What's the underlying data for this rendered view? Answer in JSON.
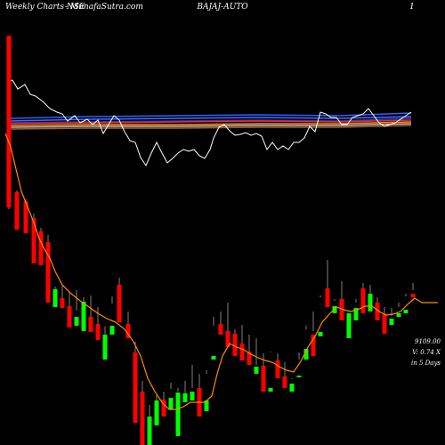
{
  "header": {
    "left": "Weekly Charts NSE",
    "middle": "-  MunafaSutra.com",
    "symbol": "BAJAJ-AUTO",
    "right": "1"
  },
  "side_labels": {
    "price": "9109.00",
    "change": "V: 0.74  X",
    "period": "in 5 Days"
  },
  "colors": {
    "background": "#000000",
    "up": "#00ff00",
    "down": "#ff0000",
    "wick": "#808080",
    "ma": "#ff8c00",
    "indicator": "#ffffff",
    "band_blue": "#3060ff",
    "band_red": "#ff2020",
    "band_orange": "#ff8c00"
  },
  "chart_data": {
    "type": "candlestick",
    "ylim": [
      90,
      500
    ],
    "candles": [
      [
        10,
        40,
        44,
        233,
        235,
        "down"
      ],
      [
        19,
        216,
        214,
        258,
        236,
        "down"
      ],
      [
        29,
        226,
        224,
        262,
        236,
        "down"
      ],
      [
        38,
        245,
        240,
        296,
        292,
        "down"
      ],
      [
        46,
        260,
        256,
        298,
        286,
        "down"
      ],
      [
        54,
        272,
        264,
        340,
        335,
        "down"
      ],
      [
        62,
        325,
        322,
        345,
        330,
        "up"
      ],
      [
        70,
        335,
        320,
        346,
        343,
        "down"
      ],
      [
        78,
        344,
        327,
        368,
        360,
        "down"
      ],
      [
        86,
        356,
        326,
        366,
        349,
        "up"
      ],
      [
        94,
        339,
        334,
        372,
        342,
        "up"
      ],
      [
        102,
        356,
        332,
        373,
        363,
        "down"
      ],
      [
        110,
        364,
        345,
        382,
        380,
        "down"
      ],
      [
        118,
        376,
        367,
        404,
        393,
        "up"
      ],
      [
        126,
        366,
        333,
        376,
        341,
        "up"
      ],
      [
        134,
        320,
        312,
        362,
        356,
        "down"
      ],
      [
        144,
        364,
        350,
        380,
        370,
        "down"
      ],
      [
        152,
        396,
        384,
        475,
        456,
        "down"
      ],
      [
        160,
        440,
        428,
        500,
        487,
        "down"
      ],
      [
        168,
        468,
        455,
        500,
        475,
        "up"
      ],
      [
        176,
        450,
        444,
        478,
        453,
        "up"
      ],
      [
        184,
        449,
        440,
        468,
        458,
        "down"
      ],
      [
        192,
        447,
        430,
        460,
        437,
        "up"
      ],
      [
        200,
        441,
        436,
        490,
        440,
        "up"
      ],
      [
        208,
        442,
        428,
        452,
        445,
        "up"
      ],
      [
        216,
        440,
        410,
        450,
        436,
        "up"
      ],
      [
        224,
        436,
        420,
        468,
        458,
        "down"
      ],
      [
        232,
        450,
        416,
        462,
        420,
        "up"
      ],
      [
        240,
        400,
        356,
        404,
        366,
        "up"
      ],
      [
        248,
        364,
        350,
        376,
        374,
        "down"
      ],
      [
        256,
        372,
        340,
        390,
        380,
        "down"
      ],
      [
        264,
        375,
        370,
        400,
        396,
        "down"
      ],
      [
        272,
        386,
        365,
        405,
        405,
        "down"
      ],
      [
        280,
        395,
        376,
        410,
        408,
        "down"
      ],
      [
        288,
        412,
        380,
        420,
        410,
        "up"
      ],
      [
        296,
        411,
        397,
        440,
        418,
        "down"
      ],
      [
        304,
        436,
        395,
        440,
        396,
        "up"
      ],
      [
        312,
        405,
        397,
        425,
        417,
        "down"
      ],
      [
        320,
        423,
        407,
        436,
        434,
        "down"
      ],
      [
        328,
        431,
        425,
        440,
        426,
        "up"
      ],
      [
        336,
        422,
        396,
        424,
        404,
        "up"
      ],
      [
        344,
        392,
        366,
        404,
        370,
        "up"
      ],
      [
        352,
        376,
        350,
        400,
        372,
        "down"
      ],
      [
        360,
        373,
        332,
        378,
        334,
        "up"
      ],
      [
        368,
        324,
        292,
        345,
        340,
        "down"
      ],
      [
        376,
        344,
        336,
        352,
        338,
        "up"
      ],
      [
        384,
        336,
        316,
        360,
        344,
        "down"
      ],
      [
        392,
        352,
        349,
        380,
        350,
        "up"
      ],
      [
        400,
        346,
        336,
        360,
        340,
        "up"
      ],
      [
        408,
        324,
        318,
        352,
        333,
        "down"
      ],
      [
        416,
        330,
        320,
        350,
        340,
        "up"
      ],
      [
        424,
        340,
        334,
        360,
        356,
        "down"
      ],
      [
        432,
        353,
        345,
        375,
        360,
        "down"
      ],
      [
        440,
        358,
        346,
        365,
        355,
        "up"
      ],
      [
        448,
        352,
        340,
        356,
        345,
        "up"
      ],
      [
        456,
        348,
        330,
        352,
        333,
        "up"
      ],
      [
        464,
        330,
        318,
        334,
        326,
        "down"
      ]
    ],
    "ma_line": [
      [
        6,
        150
      ],
      [
        12,
        165
      ],
      [
        18,
        190
      ],
      [
        24,
        215
      ],
      [
        30,
        230
      ],
      [
        38,
        250
      ],
      [
        44,
        268
      ],
      [
        50,
        280
      ],
      [
        56,
        290
      ],
      [
        62,
        305
      ],
      [
        70,
        320
      ],
      [
        80,
        330
      ],
      [
        90,
        338
      ],
      [
        100,
        345
      ],
      [
        110,
        352
      ],
      [
        120,
        358
      ],
      [
        130,
        362
      ],
      [
        140,
        370
      ],
      [
        150,
        384
      ],
      [
        158,
        400
      ],
      [
        166,
        425
      ],
      [
        174,
        440
      ],
      [
        182,
        452
      ],
      [
        190,
        460
      ],
      [
        198,
        460
      ],
      [
        206,
        457
      ],
      [
        214,
        452
      ],
      [
        222,
        452
      ],
      [
        230,
        452
      ],
      [
        238,
        445
      ],
      [
        244,
        420
      ],
      [
        250,
        400
      ],
      [
        258,
        386
      ],
      [
        266,
        390
      ],
      [
        274,
        393
      ],
      [
        282,
        398
      ],
      [
        290,
        402
      ],
      [
        298,
        405
      ],
      [
        306,
        407
      ],
      [
        314,
        412
      ],
      [
        322,
        416
      ],
      [
        330,
        418
      ],
      [
        338,
        406
      ],
      [
        346,
        390
      ],
      [
        354,
        378
      ],
      [
        362,
        362
      ],
      [
        370,
        353
      ],
      [
        378,
        345
      ],
      [
        386,
        348
      ],
      [
        394,
        350
      ],
      [
        402,
        348
      ],
      [
        410,
        344
      ],
      [
        418,
        344
      ],
      [
        426,
        350
      ],
      [
        434,
        354
      ],
      [
        442,
        353
      ],
      [
        450,
        350
      ],
      [
        458,
        342
      ],
      [
        466,
        335
      ],
      [
        474,
        340
      ],
      [
        492,
        340
      ]
    ],
    "indicator_line": [
      [
        8,
        92
      ],
      [
        14,
        90
      ],
      [
        20,
        100
      ],
      [
        28,
        95
      ],
      [
        34,
        106
      ],
      [
        40,
        108
      ],
      [
        48,
        114
      ],
      [
        56,
        122
      ],
      [
        64,
        126
      ],
      [
        70,
        128
      ],
      [
        76,
        136
      ],
      [
        84,
        130
      ],
      [
        90,
        138
      ],
      [
        98,
        134
      ],
      [
        104,
        140
      ],
      [
        110,
        135
      ],
      [
        116,
        150
      ],
      [
        122,
        140
      ],
      [
        128,
        130
      ],
      [
        134,
        135
      ],
      [
        140,
        148
      ],
      [
        146,
        158
      ],
      [
        152,
        160
      ],
      [
        158,
        177
      ],
      [
        164,
        186
      ],
      [
        170,
        172
      ],
      [
        176,
        160
      ],
      [
        182,
        172
      ],
      [
        188,
        183
      ],
      [
        194,
        178
      ],
      [
        200,
        172
      ],
      [
        206,
        168
      ],
      [
        212,
        170
      ],
      [
        218,
        168
      ],
      [
        224,
        175
      ],
      [
        230,
        178
      ],
      [
        236,
        168
      ],
      [
        240,
        155
      ],
      [
        246,
        143
      ],
      [
        252,
        140
      ],
      [
        258,
        147
      ],
      [
        264,
        152
      ],
      [
        270,
        151
      ],
      [
        276,
        149
      ],
      [
        282,
        152
      ],
      [
        288,
        150
      ],
      [
        294,
        153
      ],
      [
        300,
        168
      ],
      [
        306,
        160
      ],
      [
        312,
        168
      ],
      [
        318,
        164
      ],
      [
        324,
        168
      ],
      [
        330,
        160
      ],
      [
        336,
        160
      ],
      [
        342,
        155
      ],
      [
        348,
        142
      ],
      [
        354,
        148
      ],
      [
        360,
        126
      ],
      [
        366,
        128
      ],
      [
        372,
        132
      ],
      [
        378,
        132
      ],
      [
        384,
        140
      ],
      [
        390,
        140
      ],
      [
        396,
        132
      ],
      [
        402,
        130
      ],
      [
        408,
        128
      ],
      [
        414,
        122
      ],
      [
        420,
        130
      ],
      [
        426,
        138
      ],
      [
        432,
        142
      ],
      [
        438,
        140
      ],
      [
        444,
        138
      ],
      [
        450,
        134
      ],
      [
        456,
        130
      ],
      [
        462,
        126
      ]
    ],
    "bands": [
      {
        "color": "#3060ff",
        "points": [
          [
            10,
            133
          ],
          [
            100,
            131
          ],
          [
            200,
            130
          ],
          [
            290,
            129
          ],
          [
            380,
            130
          ],
          [
            462,
            127
          ]
        ]
      },
      {
        "color": "#4070ff",
        "points": [
          [
            10,
            136
          ],
          [
            100,
            134
          ],
          [
            200,
            133
          ],
          [
            290,
            132
          ],
          [
            380,
            133
          ],
          [
            462,
            131
          ]
        ]
      },
      {
        "color": "#2040e0",
        "points": [
          [
            10,
            138
          ],
          [
            100,
            137
          ],
          [
            200,
            136
          ],
          [
            290,
            135
          ],
          [
            380,
            136
          ],
          [
            462,
            133
          ]
        ]
      },
      {
        "color": "#ff2020",
        "points": [
          [
            10,
            139
          ],
          [
            100,
            138
          ],
          [
            200,
            137
          ],
          [
            290,
            136
          ],
          [
            380,
            137
          ],
          [
            462,
            135
          ]
        ]
      },
      {
        "color": "#ff8c00",
        "points": [
          [
            10,
            141
          ],
          [
            100,
            140
          ],
          [
            200,
            140
          ],
          [
            290,
            139
          ],
          [
            380,
            139
          ],
          [
            462,
            137
          ]
        ]
      },
      {
        "color": "#c0c0c0",
        "points": [
          [
            10,
            143
          ],
          [
            100,
            142
          ],
          [
            200,
            142
          ],
          [
            290,
            141
          ],
          [
            380,
            141
          ],
          [
            462,
            139
          ]
        ]
      },
      {
        "color": "#a06030",
        "points": [
          [
            10,
            145
          ],
          [
            100,
            144
          ],
          [
            200,
            144
          ],
          [
            290,
            143
          ],
          [
            380,
            143
          ],
          [
            462,
            141
          ]
        ]
      }
    ]
  }
}
